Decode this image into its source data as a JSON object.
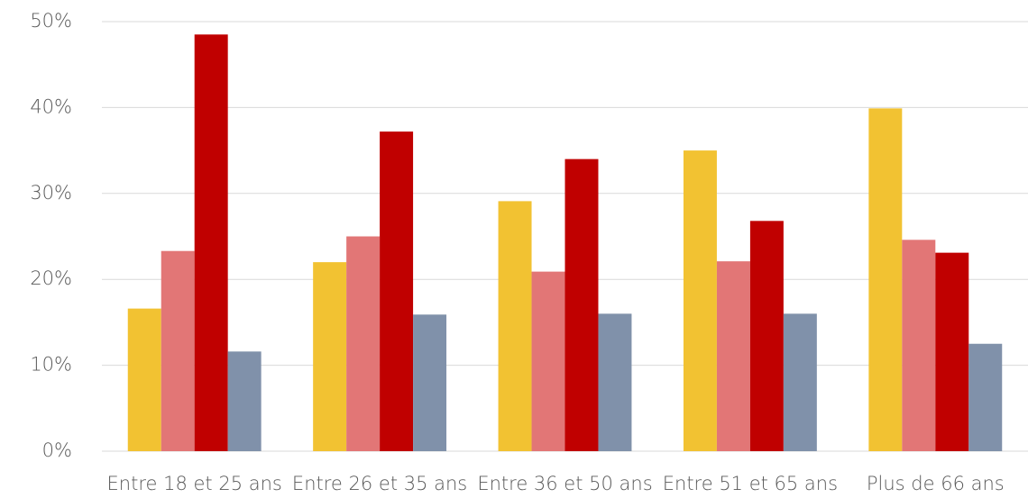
{
  "chart_data": {
    "type": "bar",
    "categories": [
      "Entre 18 et 25 ans",
      "Entre 26 et 35 ans",
      "Entre 36 et 50 ans",
      "Entre 51 et 65 ans",
      "Plus de 66 ans"
    ],
    "series": [
      {
        "color": "#f2c232",
        "values": [
          16.6,
          22.0,
          29.1,
          35.0,
          39.9
        ]
      },
      {
        "color": "#e27676",
        "values": [
          23.3,
          25.0,
          20.9,
          22.1,
          24.6
        ]
      },
      {
        "color": "#c00000",
        "values": [
          48.5,
          37.2,
          34.0,
          26.8,
          23.1
        ]
      },
      {
        "color": "#8091aa",
        "values": [
          11.6,
          15.9,
          16.0,
          16.0,
          12.5
        ]
      }
    ],
    "ylim": [
      0,
      50
    ],
    "yticks": [
      {
        "value": 0,
        "label": "0%"
      },
      {
        "value": 10,
        "label": "10%"
      },
      {
        "value": 20,
        "label": "20%"
      },
      {
        "value": 30,
        "label": "30%"
      },
      {
        "value": 40,
        "label": "40%"
      },
      {
        "value": 50,
        "label": "50%"
      }
    ],
    "grid": true
  }
}
